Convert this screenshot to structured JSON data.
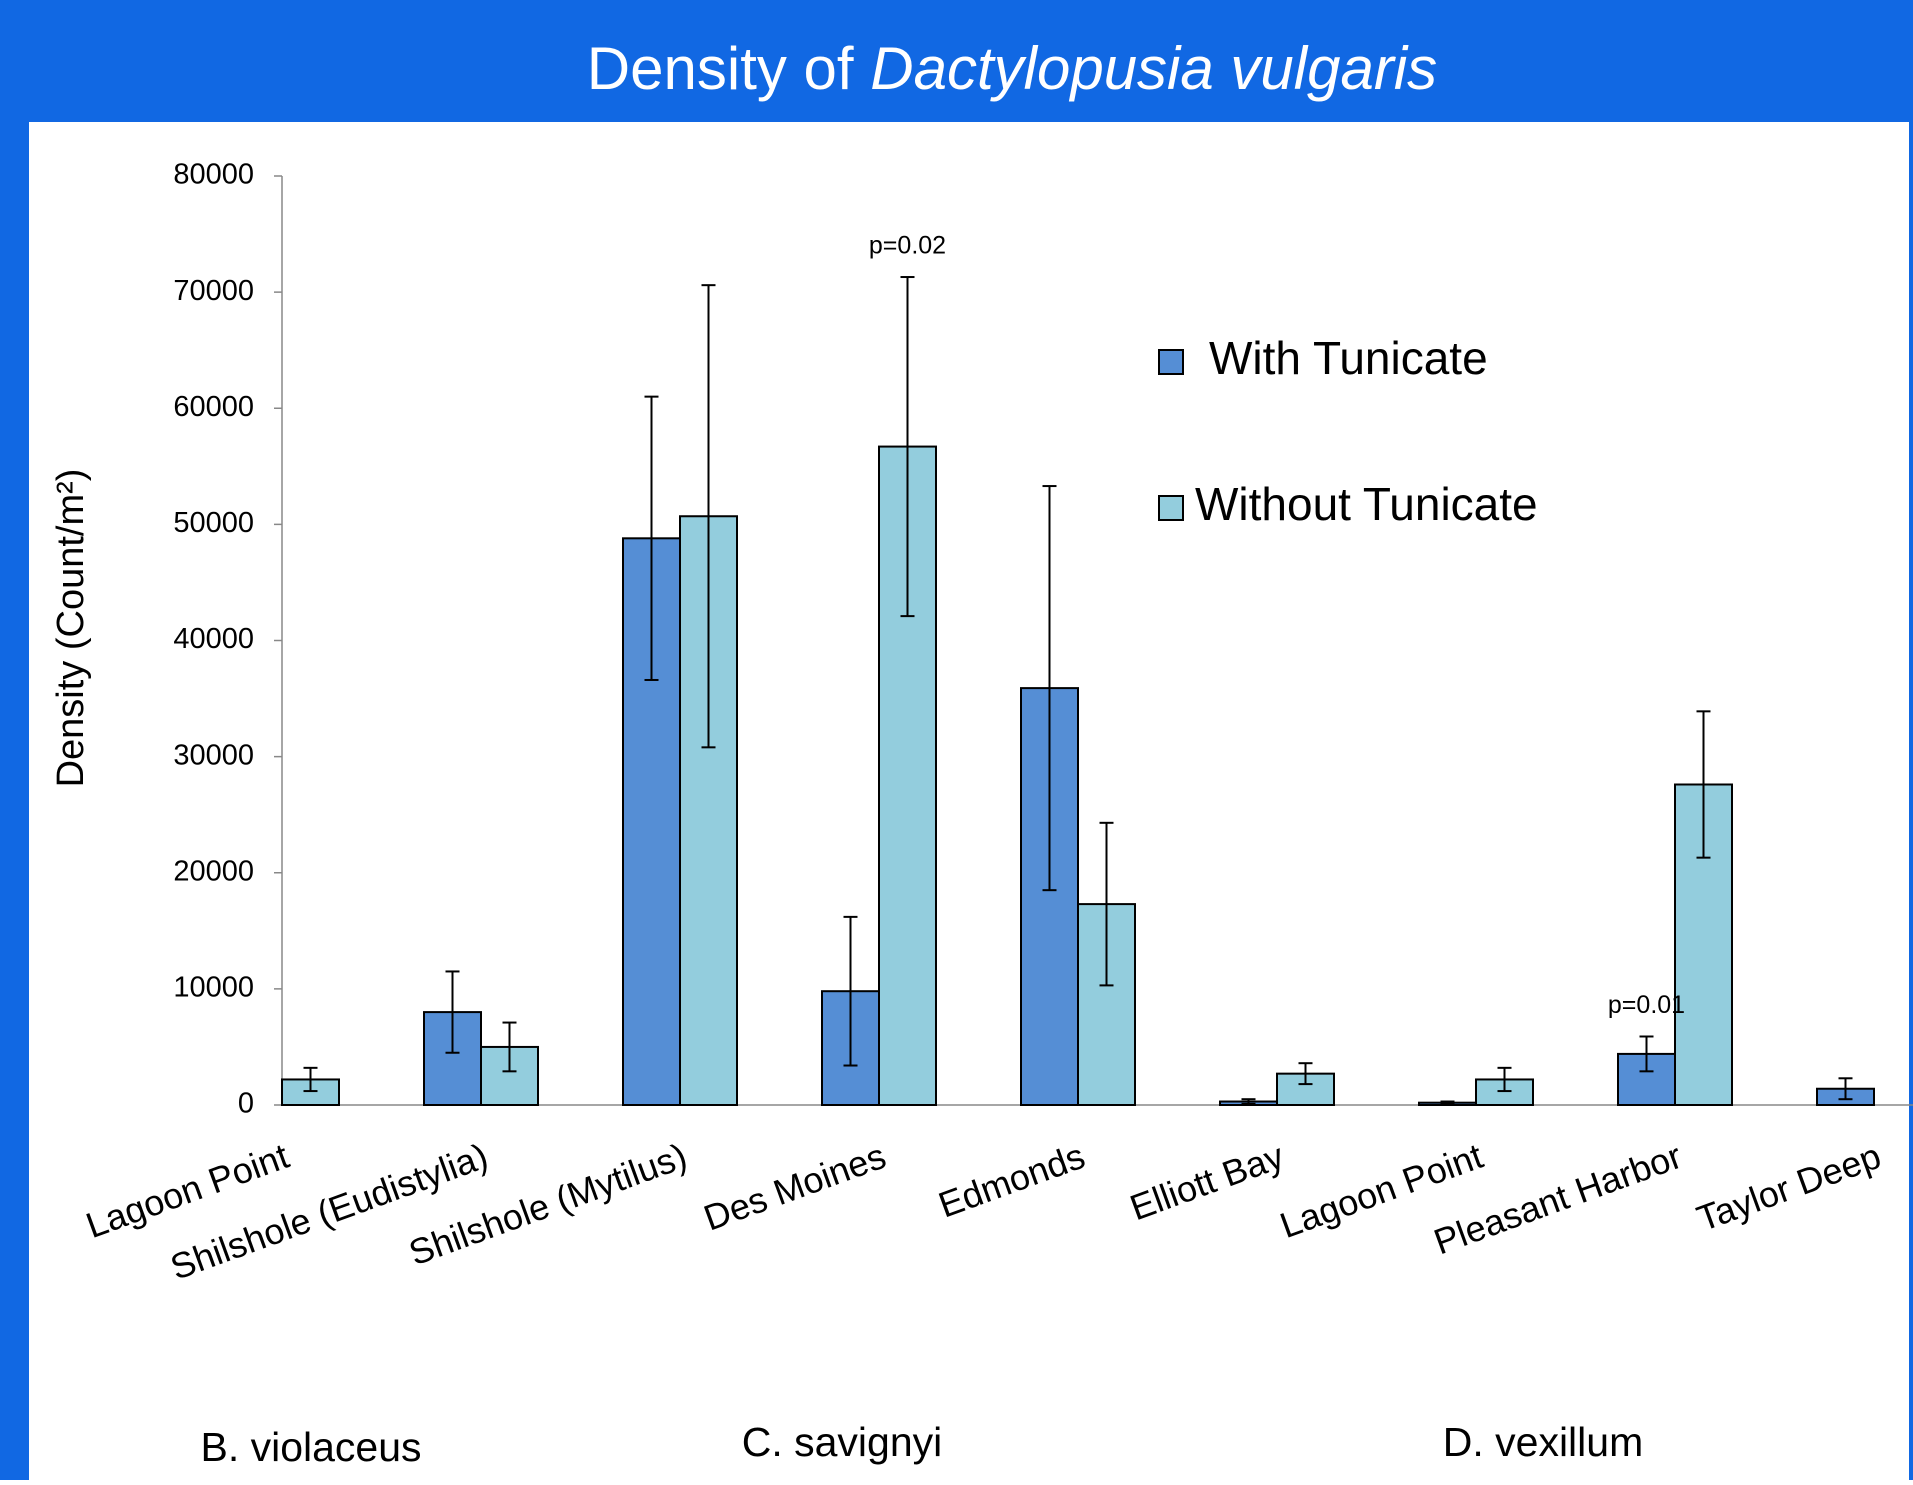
{
  "chart_data": {
    "type": "bar",
    "title": {
      "prefix": "Density of ",
      "species": "Dactylopusia vulgaris"
    },
    "y_label": "Density (Count/m²)",
    "categories": [
      "Lagoon Point",
      "Shilshole (Eudistylia)",
      "Shilshole (Mytilus)",
      "Des Moines",
      "Edmonds",
      "Elliott Bay",
      "Lagoon Point",
      "Pleasant Harbor",
      "Taylor Deep"
    ],
    "series": [
      {
        "name": "With Tunicate",
        "color": "#558ed5",
        "values": [
          null,
          8000,
          48800,
          9800,
          35900,
          300,
          200,
          4400,
          1400
        ],
        "errors": [
          null,
          3500,
          12200,
          6400,
          17400,
          200,
          100,
          1500,
          900
        ]
      },
      {
        "name": "Without Tunicate",
        "color": "#93cddd",
        "values": [
          2200,
          5000,
          50700,
          56700,
          17300,
          2700,
          2200,
          27600,
          null
        ],
        "errors": [
          1000,
          2100,
          19900,
          14600,
          7000,
          900,
          1000,
          6300,
          null
        ]
      }
    ],
    "annotations": [
      {
        "text": "p=0.02",
        "category": "Des Moines",
        "series": "Without Tunicate"
      },
      {
        "text": "p=0.01",
        "category": "Pleasant Harbor",
        "series": "With Tunicate"
      }
    ],
    "groups": [
      "B. violaceus",
      "C. savignyi",
      "D. vexillum"
    ],
    "ylim": [
      0,
      80000
    ],
    "yticks": [
      0,
      10000,
      20000,
      30000,
      40000,
      50000,
      60000,
      70000,
      80000
    ]
  }
}
